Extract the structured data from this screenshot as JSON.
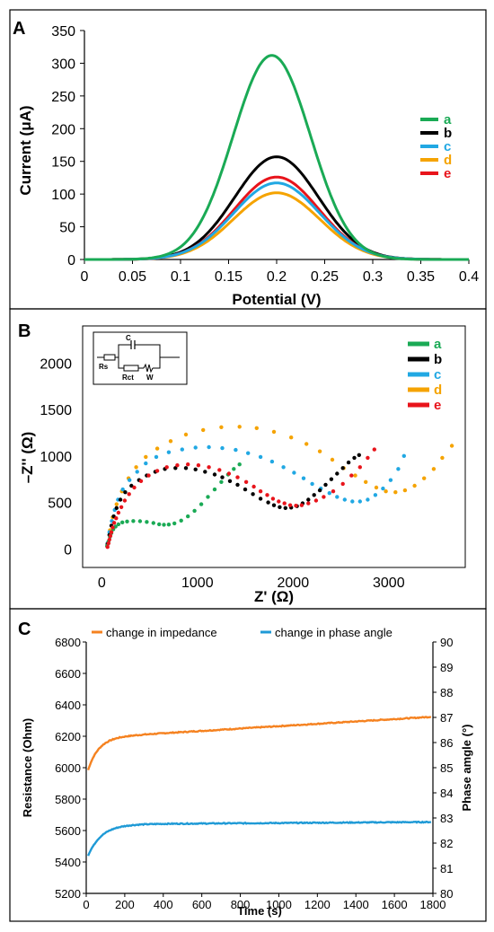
{
  "chart_data": [
    {
      "panel": "A",
      "type": "line",
      "xlabel": "Potential (V)",
      "ylabel": "Current (μA)",
      "xlim": [
        0,
        0.4
      ],
      "ylim": [
        0,
        350
      ],
      "xticks": [
        "0",
        "0.05",
        "0.1",
        "0.15",
        "0.2",
        "0.25",
        "0.3",
        "0.35",
        "0.4"
      ],
      "yticks": [
        "0",
        "50",
        "100",
        "150",
        "200",
        "250",
        "300",
        "350"
      ],
      "legend_position": "right",
      "series": [
        {
          "name": "a",
          "color": "#1aaa55",
          "peak_x": 0.195,
          "peak_y": 312,
          "width": 0.072
        },
        {
          "name": "b",
          "color": "#000000",
          "peak_x": 0.2,
          "peak_y": 157,
          "width": 0.078
        },
        {
          "name": "c",
          "color": "#21a8e3",
          "peak_x": 0.2,
          "peak_y": 117,
          "width": 0.08
        },
        {
          "name": "d",
          "color": "#f5a300",
          "peak_x": 0.2,
          "peak_y": 102,
          "width": 0.08
        },
        {
          "name": "e",
          "color": "#e8141b",
          "peak_x": 0.2,
          "peak_y": 126,
          "width": 0.079
        }
      ]
    },
    {
      "panel": "B",
      "type": "scatter",
      "xlabel": "Z' (Ω)",
      "ylabel": "–Z'' (Ω)",
      "xlim": [
        -200,
        3800
      ],
      "ylim": [
        -200,
        2400
      ],
      "xticks": [
        "0",
        "1000",
        "2000",
        "3000"
      ],
      "yticks": [
        "0",
        "500",
        "1000",
        "1500",
        "2000"
      ],
      "legend_position": "top-right",
      "inset": {
        "labels": [
          "C",
          "Rs",
          "Rct",
          "W"
        ]
      },
      "series": [
        {
          "name": "a",
          "color": "#1aaa55",
          "x": [
            55,
            70,
            85,
            100,
            120,
            145,
            175,
            215,
            265,
            330,
            400,
            470,
            540,
            600,
            650,
            700,
            760,
            830,
            900,
            970,
            1040,
            1110,
            1180,
            1250,
            1320,
            1380,
            1440
          ],
          "y": [
            30,
            80,
            130,
            170,
            210,
            240,
            265,
            285,
            295,
            300,
            298,
            290,
            278,
            265,
            260,
            262,
            275,
            305,
            350,
            410,
            480,
            560,
            640,
            720,
            800,
            860,
            910
          ]
        },
        {
          "name": "b",
          "color": "#000000",
          "x": [
            60,
            80,
            100,
            125,
            155,
            195,
            245,
            310,
            390,
            470,
            560,
            660,
            770,
            880,
            980,
            1080,
            1180,
            1260,
            1340,
            1420,
            1500,
            1580,
            1660,
            1740,
            1800,
            1860,
            1920,
            1980,
            2040,
            2100,
            2160,
            2220,
            2280,
            2340,
            2400,
            2460,
            2520,
            2580,
            2640,
            2690
          ],
          "y": [
            50,
            150,
            250,
            350,
            440,
            530,
            610,
            680,
            740,
            790,
            830,
            860,
            870,
            870,
            855,
            830,
            800,
            770,
            730,
            690,
            640,
            590,
            540,
            500,
            470,
            450,
            440,
            445,
            460,
            490,
            530,
            580,
            630,
            690,
            750,
            810,
            870,
            930,
            980,
            1010
          ]
        },
        {
          "name": "c",
          "color": "#21a8e3",
          "x": [
            60,
            80,
            105,
            135,
            170,
            220,
            290,
            370,
            460,
            570,
            700,
            840,
            980,
            1120,
            1260,
            1400,
            1530,
            1660,
            1780,
            1900,
            2010,
            2110,
            2200,
            2290,
            2380,
            2460,
            2540,
            2620,
            2700,
            2780,
            2860,
            2940,
            3020,
            3100,
            3160
          ],
          "y": [
            60,
            180,
            300,
            420,
            530,
            640,
            740,
            830,
            920,
            990,
            1040,
            1070,
            1090,
            1095,
            1085,
            1065,
            1030,
            990,
            940,
            880,
            820,
            760,
            700,
            650,
            600,
            560,
            530,
            510,
            510,
            530,
            580,
            650,
            740,
            860,
            1000
          ]
        },
        {
          "name": "d",
          "color": "#f5a300",
          "x": [
            60,
            85,
            115,
            155,
            210,
            280,
            360,
            460,
            580,
            720,
            880,
            1060,
            1250,
            1440,
            1620,
            1800,
            1980,
            2140,
            2280,
            2410,
            2530,
            2650,
            2760,
            2870,
            2970,
            3070,
            3170,
            3270,
            3370,
            3470,
            3560,
            3660
          ],
          "y": [
            60,
            200,
            340,
            480,
            620,
            760,
            880,
            990,
            1080,
            1160,
            1230,
            1280,
            1310,
            1315,
            1300,
            1260,
            1200,
            1130,
            1050,
            960,
            870,
            790,
            720,
            660,
            620,
            610,
            630,
            680,
            760,
            860,
            980,
            1110
          ]
        },
        {
          "name": "e",
          "color": "#e8141b",
          "x": [
            60,
            70,
            80,
            90,
            100,
            115,
            130,
            150,
            175,
            205,
            240,
            285,
            340,
            410,
            490,
            580,
            680,
            790,
            900,
            1010,
            1120,
            1230,
            1330,
            1420,
            1510,
            1590,
            1660,
            1730,
            1790,
            1850,
            1910,
            1970,
            2030,
            2090,
            2160,
            2240,
            2320,
            2420,
            2520,
            2610,
            2700,
            2780,
            2850
          ],
          "y": [
            20,
            60,
            100,
            140,
            180,
            230,
            280,
            330,
            390,
            450,
            520,
            590,
            660,
            730,
            790,
            840,
            880,
            900,
            910,
            900,
            880,
            850,
            810,
            770,
            720,
            670,
            620,
            580,
            540,
            510,
            490,
            470,
            465,
            470,
            490,
            520,
            560,
            620,
            700,
            790,
            880,
            980,
            1070
          ]
        }
      ]
    },
    {
      "panel": "C",
      "type": "line",
      "xlabel": "Time (s)",
      "ylabel": "Resistance (Ohm)",
      "y2label": "Phase amgle (°)",
      "xlim": [
        0,
        1800
      ],
      "ylim": [
        5200,
        6800
      ],
      "y2lim": [
        80,
        90
      ],
      "xticks": [
        "0",
        "200",
        "400",
        "600",
        "800",
        "1000",
        "1200",
        "1400",
        "1600",
        "1800"
      ],
      "yticks": [
        "5200",
        "5400",
        "5600",
        "5800",
        "6000",
        "6200",
        "6400",
        "6600",
        "6800"
      ],
      "y2ticks": [
        "80",
        "81",
        "82",
        "83",
        "84",
        "85",
        "86",
        "87",
        "88",
        "89",
        "90"
      ],
      "legend_position": "top",
      "series": [
        {
          "name": "change in impedance",
          "color": "#f58220",
          "axis": "left",
          "start": 5985,
          "plateau": 6190,
          "slope_per_s": 0.075,
          "tau": 55
        },
        {
          "name": "change in phase angle",
          "color": "#1f9ad6",
          "axis": "left",
          "start": 5440,
          "plateau": 5640,
          "slope_per_s": 0.008,
          "tau": 70
        }
      ]
    }
  ],
  "panels": {
    "a": "A",
    "b": "B",
    "c": "C"
  }
}
